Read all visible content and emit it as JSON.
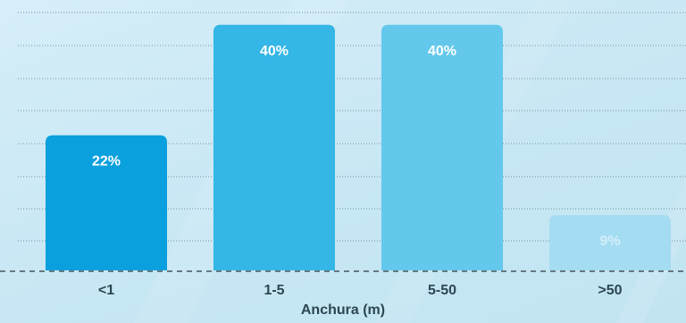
{
  "chart_data": {
    "type": "bar",
    "categories": [
      "<1",
      "1-5",
      "5-50",
      ">50"
    ],
    "values": [
      22,
      40,
      40,
      9
    ],
    "value_labels": [
      "22%",
      "40%",
      "40%",
      "9%"
    ],
    "title": "",
    "xlabel": "Anchura (m)",
    "ylabel": "",
    "ylim": [
      0,
      42
    ],
    "grid": true,
    "legend": "none"
  },
  "colors": {
    "bars": [
      "#0aa0dd",
      "#34b6e6",
      "#63c8ec",
      "#a4dcf2"
    ],
    "bar_label_text": [
      "#ffffff",
      "#ffffff",
      "#ffffff",
      "#d4eef9"
    ],
    "grid": "#5e6f77",
    "text": "#2c4652"
  }
}
